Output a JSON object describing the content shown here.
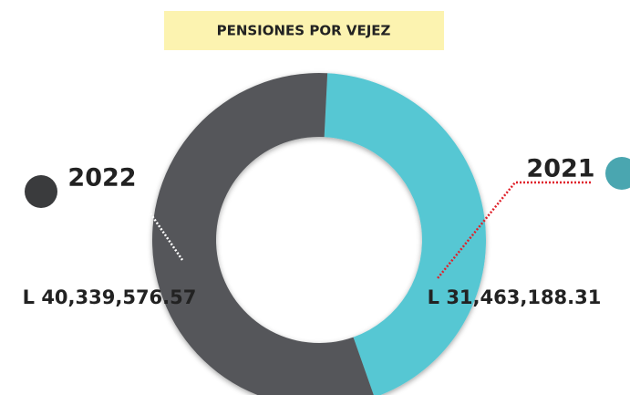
{
  "chart_data": {
    "type": "donut",
    "title": "PENSIONES POR VEJEZ",
    "categories": [
      "2021",
      "2022"
    ],
    "values": [
      31463188.31,
      40339576.57
    ],
    "value_labels": [
      "L 31,463,188.31",
      "L 40,339,576.57"
    ],
    "colors": [
      "#56c7d3",
      "#55575a"
    ]
  }
}
